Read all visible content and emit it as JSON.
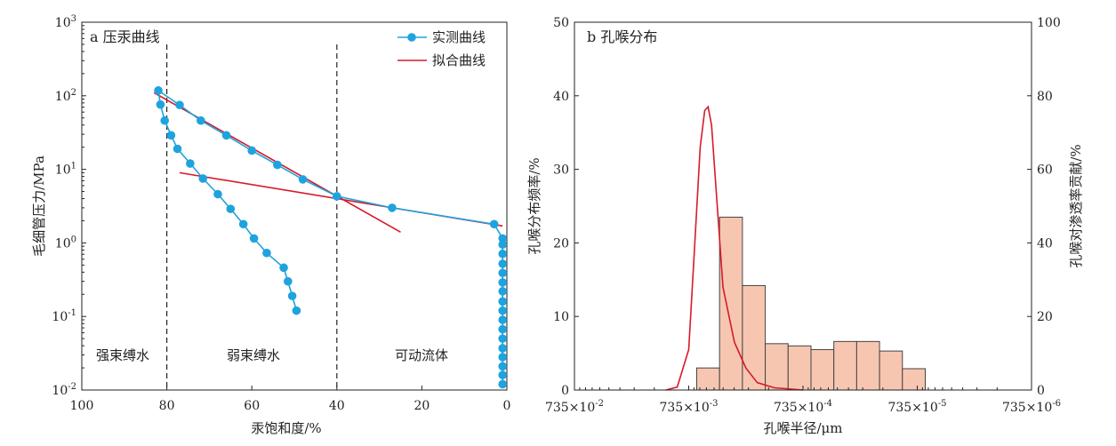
{
  "chart_data": [
    {
      "type": "line",
      "title": "a 压汞曲线",
      "xlabel": "汞饱和度/%",
      "ylabel": "毛细管压力/MPa",
      "x_reversed": true,
      "xlim": [
        100,
        0
      ],
      "x_ticks": [
        100,
        80,
        60,
        40,
        20,
        0
      ],
      "y_scale": "log",
      "ylim": [
        0.01,
        1000
      ],
      "y_ticks": [
        {
          "base": "10",
          "exp": "-2",
          "value": 0.01
        },
        {
          "base": "10",
          "exp": "-1",
          "value": 0.1
        },
        {
          "base": "10",
          "exp": "0",
          "value": 1
        },
        {
          "base": "10",
          "exp": "1",
          "value": 10
        },
        {
          "base": "10",
          "exp": "2",
          "value": 100
        },
        {
          "base": "10",
          "exp": "3",
          "value": 1000
        }
      ],
      "legend_position": "top-right",
      "vlines": [
        80,
        40
      ],
      "regions": [
        "强束缚水",
        "弱束缚水",
        "可动流体"
      ],
      "series": [
        {
          "name": "实测曲线",
          "color": "#1fa3de",
          "marker": "circle",
          "points": [
            [
              1.0,
              0.012
            ],
            [
              1.0,
              0.016
            ],
            [
              1.0,
              0.021
            ],
            [
              1.0,
              0.028
            ],
            [
              1.0,
              0.037
            ],
            [
              1.0,
              0.05
            ],
            [
              1.0,
              0.067
            ],
            [
              1.0,
              0.09
            ],
            [
              1.0,
              0.12
            ],
            [
              1.0,
              0.16
            ],
            [
              1.0,
              0.22
            ],
            [
              1.0,
              0.29
            ],
            [
              1.0,
              0.39
            ],
            [
              1.0,
              0.52
            ],
            [
              1.0,
              0.71
            ],
            [
              1.0,
              0.95
            ],
            [
              1.0,
              1.15
            ],
            [
              3.0,
              1.8
            ],
            [
              27.0,
              3.0
            ],
            [
              40.0,
              4.3
            ],
            [
              48.0,
              7.3
            ],
            [
              54.0,
              11.5
            ],
            [
              60.0,
              18.0
            ],
            [
              66.0,
              29.0
            ],
            [
              72.0,
              46.0
            ],
            [
              77.0,
              75.0
            ],
            [
              82.0,
              118.0
            ],
            [
              81.5,
              76.0
            ],
            [
              80.5,
              46.0
            ],
            [
              79.0,
              29.0
            ],
            [
              77.5,
              19.0
            ],
            [
              74.5,
              12.0
            ],
            [
              71.5,
              7.5
            ],
            [
              68.0,
              4.6
            ],
            [
              65.0,
              2.9
            ],
            [
              62.0,
              1.8
            ],
            [
              59.5,
              1.15
            ],
            [
              56.5,
              0.73
            ],
            [
              52.5,
              0.46
            ],
            [
              51.5,
              0.3
            ],
            [
              50.5,
              0.19
            ],
            [
              49.5,
              0.12
            ]
          ]
        },
        {
          "name": "拟合曲线",
          "color": "#d61a2a",
          "segments": [
            [
              [
                83.0,
                110.0
              ],
              [
                25.0,
                1.4
              ]
            ],
            [
              [
                77.0,
                9.0
              ],
              [
                1.0,
                1.7
              ]
            ]
          ]
        }
      ]
    },
    {
      "type": "bar",
      "title": "b 孔喉分布",
      "xlabel": "孔喉半径/μm",
      "ylabel": "孔喉分布频率/%",
      "y2label": "孔喉对渗透率贡献/%",
      "x_scale": "log",
      "x_ticks": [
        {
          "base": "735×10",
          "exp": "-2"
        },
        {
          "base": "735×10",
          "exp": "-3"
        },
        {
          "base": "735×10",
          "exp": "-4"
        },
        {
          "base": "735×10",
          "exp": "-5"
        },
        {
          "base": "735×10",
          "exp": "-6"
        }
      ],
      "ylim": [
        0,
        50
      ],
      "y_ticks": [
        0,
        10,
        20,
        30,
        40,
        50
      ],
      "y2lim": [
        0,
        100
      ],
      "y2_ticks": [
        0,
        20,
        40,
        60,
        80,
        100
      ],
      "histogram": {
        "bin_start": -3.07,
        "bin_width": 0.2,
        "values": [
          3.0,
          23.5,
          14.2,
          6.3,
          6.0,
          5.5,
          6.6,
          6.6,
          5.3,
          2.9
        ],
        "fill": "#f7c6b1",
        "stroke": "#444444"
      },
      "contribution_curve": {
        "color": "#d61a2a",
        "points": [
          [
            -2.8,
            0
          ],
          [
            -2.9,
            0.8
          ],
          [
            -3.0,
            11
          ],
          [
            -3.05,
            38
          ],
          [
            -3.1,
            66
          ],
          [
            -3.14,
            76
          ],
          [
            -3.17,
            77
          ],
          [
            -3.2,
            72
          ],
          [
            -3.25,
            50
          ],
          [
            -3.3,
            28
          ],
          [
            -3.4,
            13
          ],
          [
            -3.5,
            6
          ],
          [
            -3.6,
            2
          ],
          [
            -3.75,
            0.6
          ],
          [
            -4.0,
            0
          ]
        ]
      }
    }
  ]
}
